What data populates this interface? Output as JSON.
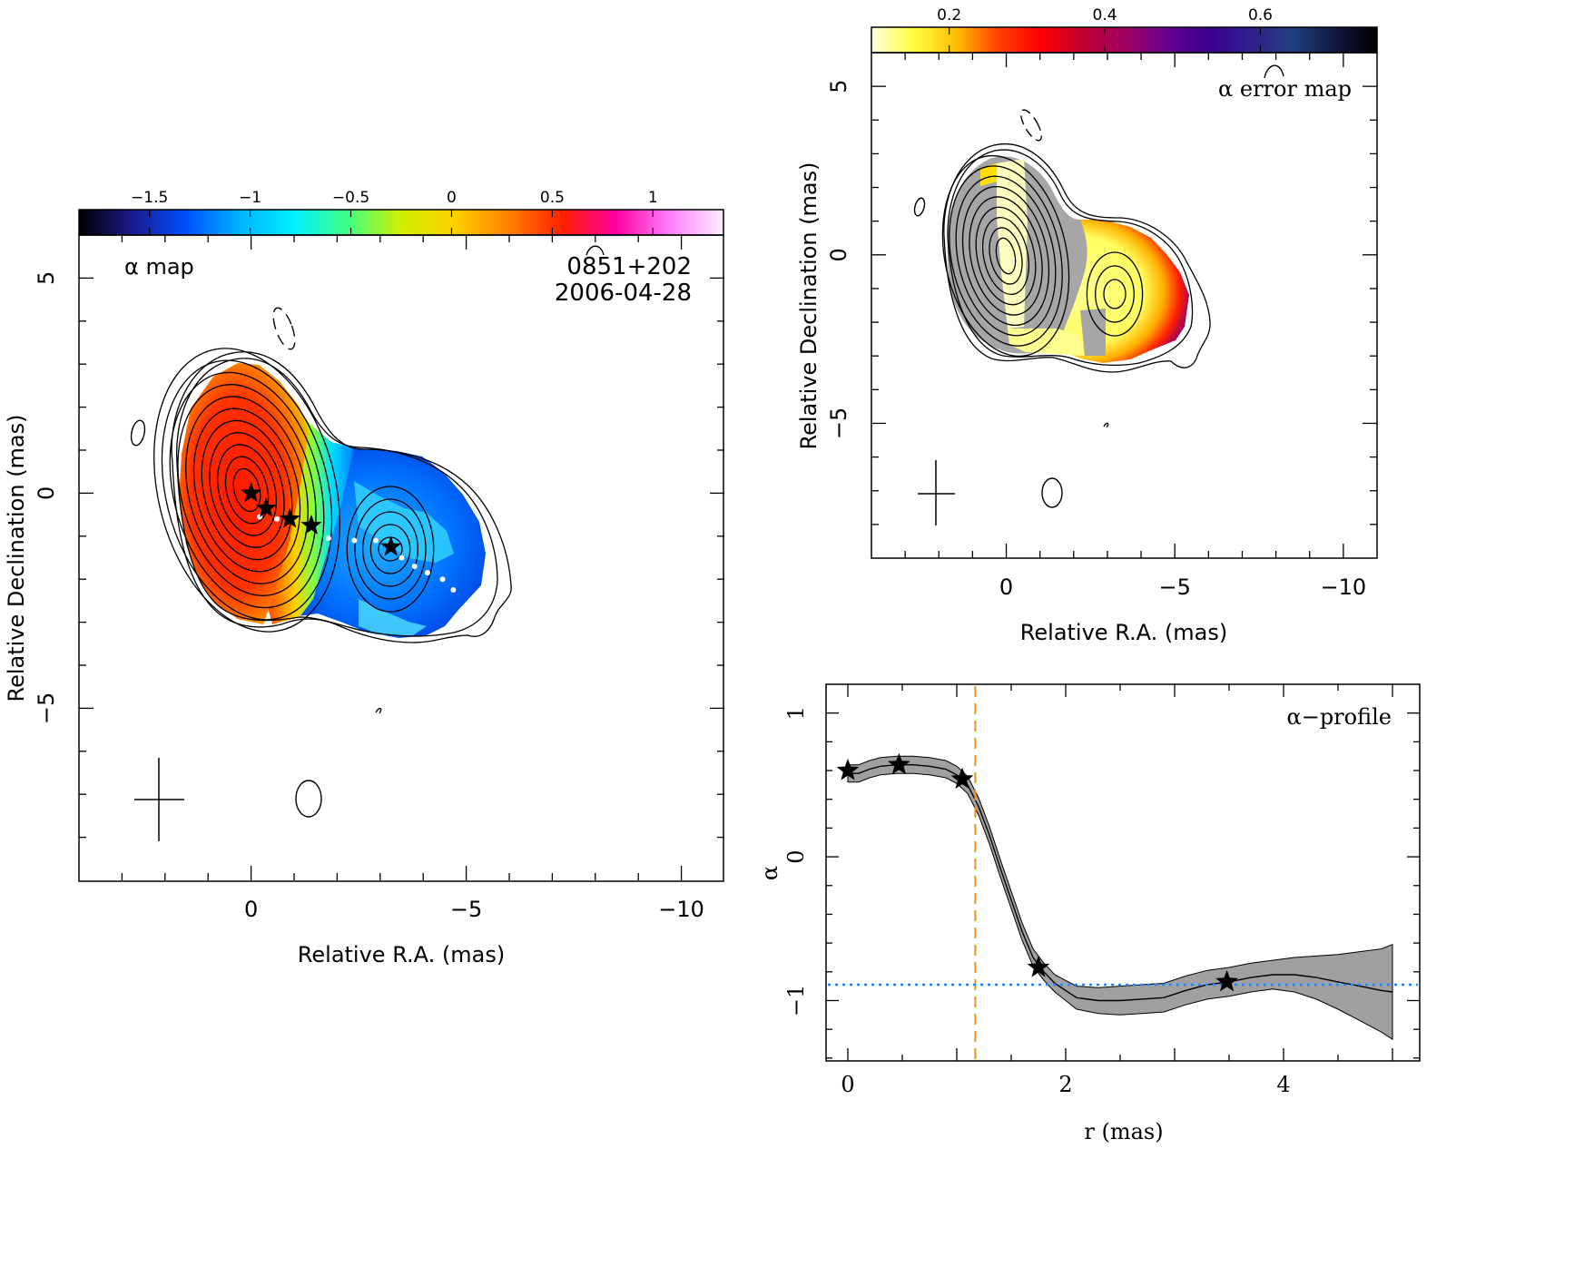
{
  "chart_data": [
    {
      "type": "heatmap",
      "panel": "alpha-map",
      "title": "α map",
      "source_label": "0851+202",
      "date_label": "2006-04-28",
      "xlabel": "Relative R.A. (mas)",
      "ylabel": "Relative Declination (mas)",
      "xlim": [
        4,
        -11
      ],
      "ylim": [
        -9,
        6
      ],
      "xticks": [
        0,
        -5,
        -10
      ],
      "xtick_labels": [
        "0",
        "−5",
        "−10"
      ],
      "yticks": [
        -5,
        0,
        5
      ],
      "ytick_labels": [
        "−5",
        "0",
        "5"
      ],
      "colorbar": {
        "range": [
          -1.85,
          1.35
        ],
        "ticks": [
          -1.5,
          -1,
          -0.5,
          0,
          0.5,
          1
        ],
        "tick_labels": [
          "−1.5",
          "−1",
          "−0.5",
          "0",
          "0.5",
          "1"
        ],
        "colors": [
          "#000000",
          "#1a1a8c",
          "#0050ff",
          "#00b4ff",
          "#00f0ff",
          "#40ff80",
          "#d0f000",
          "#ffd000",
          "#ff8000",
          "#ff2000",
          "#ff00a0",
          "#ff80ff",
          "#fff0ff"
        ]
      },
      "core_alpha": 0.6,
      "jet_alpha": -0.9,
      "ridge_stars": [
        [
          0,
          0
        ],
        [
          -0.35,
          -0.35
        ],
        [
          -0.9,
          -0.6
        ],
        [
          -1.4,
          -0.75
        ],
        [
          -3.25,
          -1.25
        ]
      ],
      "ridge_dots": [
        [
          -0.2,
          -0.55
        ],
        [
          -0.6,
          -0.6
        ],
        [
          -1.8,
          -1.05
        ],
        [
          -2.4,
          -1.1
        ],
        [
          -2.9,
          -1.1
        ],
        [
          -3.5,
          -1.5
        ],
        [
          -3.8,
          -1.7
        ],
        [
          -4.1,
          -1.85
        ],
        [
          -4.45,
          -2.0
        ],
        [
          -4.7,
          -2.25
        ]
      ]
    },
    {
      "type": "heatmap",
      "panel": "alpha-error-map",
      "title": "α error map",
      "xlabel": "Relative R.A. (mas)",
      "ylabel": "Relative Declination (mas)",
      "xlim": [
        4,
        -11
      ],
      "ylim": [
        -9,
        6
      ],
      "xticks": [
        0,
        -5,
        -10
      ],
      "xtick_labels": [
        "0",
        "−5",
        "−10"
      ],
      "yticks": [
        -5,
        0,
        5
      ],
      "ytick_labels": [
        "−5",
        "0",
        "5"
      ],
      "colorbar": {
        "range": [
          0.1,
          0.75
        ],
        "ticks": [
          0.2,
          0.4,
          0.6
        ],
        "tick_labels": [
          "0.2",
          "0.4",
          "0.6"
        ],
        "colors": [
          "#ffffe0",
          "#ffff40",
          "#ffc000",
          "#ff4000",
          "#ff0000",
          "#c00030",
          "#a00060",
          "#6a0090",
          "#3a0090",
          "#30208c",
          "#204080",
          "#101840",
          "#000000"
        ]
      }
    },
    {
      "type": "line",
      "panel": "alpha-profile",
      "title": "α−profile",
      "xlabel": "r (mas)",
      "ylabel": "α",
      "xlim": [
        -0.2,
        5.25
      ],
      "ylim": [
        -1.42,
        1.2
      ],
      "xticks": [
        0,
        2,
        4
      ],
      "xtick_labels": [
        "0",
        "2",
        "4"
      ],
      "yticks": [
        1,
        0,
        -1
      ],
      "ytick_labels": [
        "1",
        "0",
        "−1"
      ],
      "x": [
        0,
        0.1,
        0.2,
        0.3,
        0.45,
        0.6,
        0.75,
        0.9,
        1.0,
        1.1,
        1.2,
        1.3,
        1.4,
        1.5,
        1.6,
        1.7,
        1.8,
        1.9,
        2.0,
        2.1,
        2.3,
        2.5,
        2.7,
        2.9,
        3.1,
        3.3,
        3.5,
        3.7,
        3.9,
        4.1,
        4.3,
        4.5,
        4.7,
        4.9,
        5.0
      ],
      "alpha": [
        0.58,
        0.58,
        0.61,
        0.63,
        0.64,
        0.64,
        0.63,
        0.61,
        0.57,
        0.5,
        0.35,
        0.15,
        -0.08,
        -0.3,
        -0.52,
        -0.7,
        -0.8,
        -0.88,
        -0.93,
        -0.98,
        -1.0,
        -1.0,
        -0.99,
        -0.98,
        -0.93,
        -0.89,
        -0.87,
        -0.84,
        -0.82,
        -0.82,
        -0.84,
        -0.87,
        -0.9,
        -0.93,
        -0.94
      ],
      "error": [
        0.06,
        0.06,
        0.06,
        0.06,
        0.06,
        0.06,
        0.06,
        0.06,
        0.06,
        0.06,
        0.06,
        0.06,
        0.06,
        0.06,
        0.06,
        0.06,
        0.06,
        0.06,
        0.07,
        0.08,
        0.09,
        0.1,
        0.1,
        0.1,
        0.1,
        0.1,
        0.1,
        0.1,
        0.1,
        0.12,
        0.15,
        0.19,
        0.24,
        0.29,
        0.33
      ],
      "stars": [
        [
          0.0,
          0.6
        ],
        [
          0.47,
          0.64
        ],
        [
          1.05,
          0.54
        ],
        [
          1.75,
          -0.77
        ],
        [
          3.48,
          -0.87
        ]
      ],
      "vline_x": 1.17,
      "hline_y": -0.89,
      "band_color": "#a0a0a0",
      "vline_color": "#ff8c1a",
      "hline_color": "#1a8cff"
    }
  ]
}
